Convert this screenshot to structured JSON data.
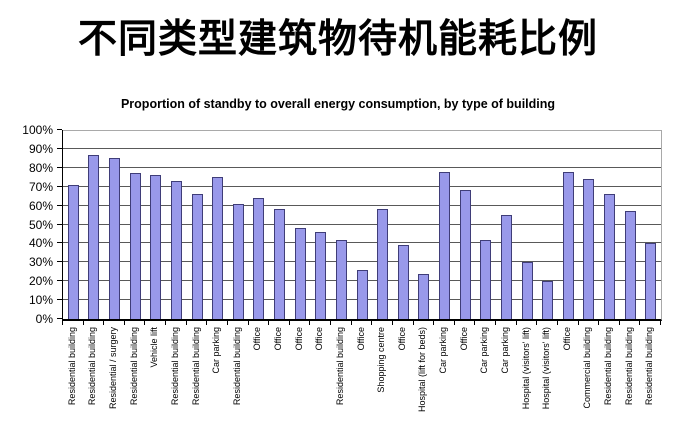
{
  "title": "不同类型建筑物待机能耗比例",
  "chart_data": {
    "type": "bar",
    "title": "Proportion of standby to overall energy consumption, by type of building",
    "categories": [
      "Residential building",
      "Residential building",
      "Residential / surgery",
      "Residential building",
      "Vehicle lift",
      "Residential building",
      "Residential building",
      "Car parking",
      "Residential building",
      "Office",
      "Office",
      "Office",
      "Office",
      "Residential building",
      "Office",
      "Shopping centre",
      "Office",
      "Hospital (lift for beds)",
      "Car parking",
      "Office",
      "Car parking",
      "Car parking",
      "Hospital (visitors' lift)",
      "Hospital (visitors' lift)",
      "Office",
      "Commercial building",
      "Residential building",
      "Residential building",
      "Residential building"
    ],
    "values": [
      71,
      87,
      85,
      77,
      76,
      73,
      66,
      75,
      61,
      64,
      58,
      48,
      46,
      42,
      26,
      58,
      39,
      24,
      78,
      68,
      42,
      55,
      30,
      20,
      78,
      74,
      66,
      57,
      40
    ],
    "unit": "%",
    "xlabel": "",
    "ylabel": "",
    "ylim": [
      0,
      100
    ],
    "ytick_step": 10,
    "ytick_labels": [
      "0%",
      "10%",
      "20%",
      "30%",
      "40%",
      "50%",
      "60%",
      "70%",
      "80%",
      "90%",
      "100%"
    ],
    "grid": true,
    "legend": false,
    "colors": {
      "bar_fill": "#9999ea",
      "bar_border": "#3f3d78",
      "gridline": "#595959",
      "gridline_top": "#a9a9a9",
      "axis": "#000000"
    }
  }
}
